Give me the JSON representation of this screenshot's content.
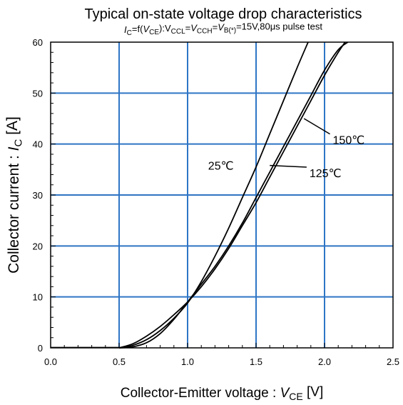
{
  "chart_data": {
    "type": "line",
    "title": "Typical on-state voltage drop characteristics",
    "subtitle": {
      "segments": [
        {
          "t": "I",
          "i": true
        },
        {
          "t": "C",
          "sub": true
        },
        {
          "t": "=f("
        },
        {
          "t": "V",
          "i": true
        },
        {
          "t": "CE",
          "sub": true
        },
        {
          "t": "):V"
        },
        {
          "t": "CCL",
          "sub": true
        },
        {
          "t": "="
        },
        {
          "t": "V",
          "i": true
        },
        {
          "t": "CCH",
          "sub": true
        },
        {
          "t": "="
        },
        {
          "t": "V",
          "i": true
        },
        {
          "t": "B(*)",
          "sub": true
        },
        {
          "t": "=15V,80μs pulse test"
        }
      ]
    },
    "xlabel": {
      "segments": [
        {
          "t": "Collector-Emitter voltage : "
        },
        {
          "t": "V",
          "i": true
        },
        {
          "t": "CE",
          "sub": true
        },
        {
          "t": " [V]"
        }
      ]
    },
    "ylabel": {
      "segments": [
        {
          "t": "Collector current : "
        },
        {
          "t": "I",
          "i": true
        },
        {
          "t": "C",
          "sub": true
        },
        {
          "t": " [A]"
        }
      ]
    },
    "xlim": [
      0,
      2.5
    ],
    "ylim": [
      0,
      60
    ],
    "xticks": [
      "0.0",
      "0.5",
      "1.0",
      "1.5",
      "2.0",
      "2.5"
    ],
    "yticks": [
      "0",
      "10",
      "20",
      "30",
      "40",
      "50",
      "60"
    ],
    "grid": true,
    "grid_color": "#2e75c5",
    "line_color": "#000000",
    "series": [
      {
        "name": "25℃",
        "x": [
          0.5,
          0.6,
          0.7,
          0.8,
          0.9,
          1.0,
          1.1,
          1.2,
          1.3,
          1.4,
          1.5,
          1.6,
          1.7,
          1.8,
          1.88
        ],
        "y": [
          0,
          0.5,
          1.6,
          3.4,
          5.8,
          8.8,
          13.0,
          18.0,
          23.5,
          29.5,
          35.5,
          42.0,
          48.5,
          55.0,
          60
        ]
      },
      {
        "name": "125℃",
        "x": [
          0.5,
          0.6,
          0.7,
          0.8,
          0.9,
          1.0,
          1.1,
          1.2,
          1.3,
          1.4,
          1.5,
          1.6,
          1.7,
          1.8,
          1.9,
          2.0,
          2.1,
          2.15
        ],
        "y": [
          0,
          0.8,
          2.3,
          4.2,
          6.5,
          9.0,
          12.0,
          15.5,
          19.5,
          24.0,
          28.5,
          33.5,
          38.5,
          43.5,
          48.5,
          53.5,
          58.0,
          60
        ]
      },
      {
        "name": "150℃",
        "x": [
          0.5,
          0.6,
          0.7,
          0.8,
          0.9,
          1.0,
          1.1,
          1.2,
          1.3,
          1.4,
          1.5,
          1.6,
          1.7,
          1.8,
          1.9,
          2.0,
          2.1,
          2.17
        ],
        "y": [
          0,
          0.2,
          1.0,
          2.8,
          5.6,
          9.0,
          12.5,
          16.0,
          20.0,
          24.5,
          29.5,
          34.5,
          39.5,
          44.5,
          49.5,
          54.5,
          58.5,
          60
        ]
      }
    ],
    "annotations": [
      {
        "text": "25℃",
        "x": 1.15,
        "y": 35.0
      },
      {
        "text": "125℃",
        "x": 1.89,
        "y": 33.5,
        "leader_to": {
          "x": 1.6,
          "y": 35.8
        }
      },
      {
        "text": "150℃",
        "x": 2.06,
        "y": 40.0,
        "leader_to": {
          "x": 1.85,
          "y": 45.0
        }
      }
    ]
  }
}
